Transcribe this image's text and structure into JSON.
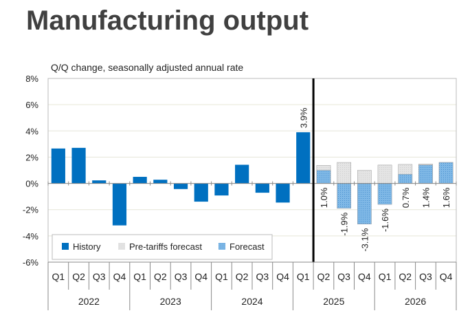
{
  "title": "Manufacturing output",
  "chart_data": {
    "type": "bar",
    "subtitle": "Q/Q change, seasonally adjusted annual rate",
    "ylim": [
      -6,
      8
    ],
    "yticks": [
      "-6%",
      "-4%",
      "-2%",
      "0%",
      "2%",
      "4%",
      "6%",
      "8%"
    ],
    "ytick_values": [
      -6,
      -4,
      -2,
      0,
      2,
      4,
      6,
      8
    ],
    "grid": true,
    "legend_position": "bottom-left",
    "colors": {
      "history": "#0070C0",
      "pre_tariffs": "#E0E0E0",
      "forecast": "#7FB8E6"
    },
    "categories": [
      "Q1",
      "Q2",
      "Q3",
      "Q4",
      "Q1",
      "Q2",
      "Q3",
      "Q4",
      "Q1",
      "Q2",
      "Q3",
      "Q4",
      "Q1",
      "Q2",
      "Q3",
      "Q4",
      "Q1",
      "Q2",
      "Q3",
      "Q4"
    ],
    "years": [
      "2022",
      "2023",
      "2024",
      "2025",
      "2026"
    ],
    "series": [
      {
        "name": "History",
        "values": [
          2.66,
          2.71,
          0.23,
          -3.2,
          0.5,
          0.28,
          -0.43,
          -1.39,
          -0.92,
          1.42,
          -0.71,
          -1.46,
          3.9,
          null,
          null,
          null,
          null,
          null,
          null,
          null
        ]
      },
      {
        "name": "Pre-tariffs forecast",
        "values": [
          null,
          null,
          null,
          null,
          null,
          null,
          null,
          null,
          null,
          null,
          null,
          null,
          null,
          1.37,
          1.6,
          1.0,
          1.4,
          1.45,
          1.48,
          1.6
        ]
      },
      {
        "name": "Forecast",
        "values": [
          null,
          null,
          null,
          null,
          null,
          null,
          null,
          null,
          null,
          null,
          null,
          null,
          null,
          1.0,
          -1.9,
          -3.1,
          -1.6,
          0.7,
          1.4,
          1.6
        ]
      }
    ],
    "data_labels": [
      {
        "index": 12,
        "text": "3.9%"
      },
      {
        "index": 13,
        "text": "1.0%"
      },
      {
        "index": 14,
        "text": "-1.9%"
      },
      {
        "index": 15,
        "text": "-3.1%"
      },
      {
        "index": 16,
        "text": "-1.6%"
      },
      {
        "index": 17,
        "text": "0.7%"
      },
      {
        "index": 18,
        "text": "1.4%"
      },
      {
        "index": 19,
        "text": "1.6%"
      }
    ],
    "divider_after_index": 12
  }
}
